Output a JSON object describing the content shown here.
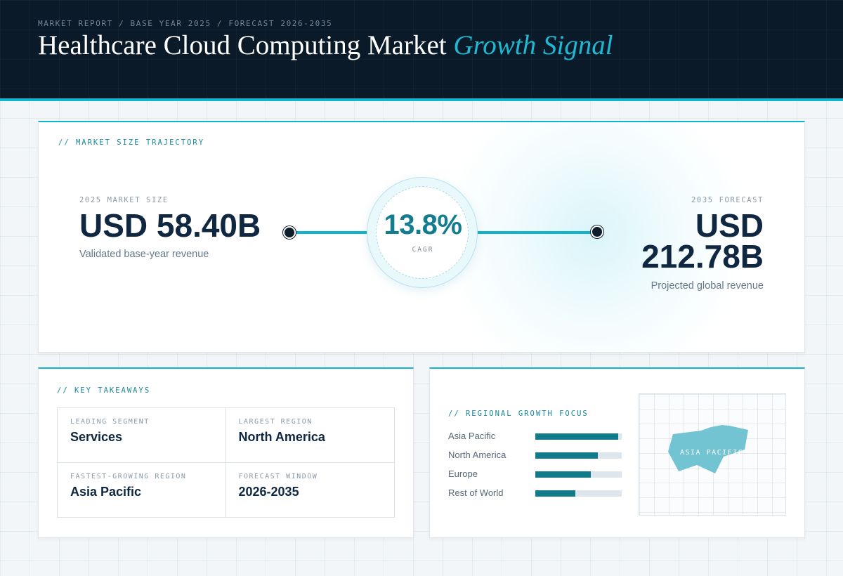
{
  "header": {
    "eyebrow": "MARKET REPORT / BASE YEAR 2025 / FORECAST 2026-2035",
    "title_main": "Healthcare Cloud Computing Market ",
    "title_accent": "Growth Signal"
  },
  "trajectory": {
    "section_label": "// MARKET SIZE TRAJECTORY",
    "base": {
      "label": "2025 MARKET SIZE",
      "value": "USD 58.40B",
      "sub": "Validated base-year revenue"
    },
    "forecast": {
      "label": "2035 FORECAST",
      "value": "USD 212.78B",
      "sub": "Projected global revenue"
    },
    "cagr": {
      "value": "13.8%",
      "label": "CAGR"
    },
    "accent_color": "#12b3cd"
  },
  "takeaways": {
    "section_label": "// KEY TAKEAWAYS",
    "items": [
      {
        "label": "LEADING SEGMENT",
        "value": "Services"
      },
      {
        "label": "LARGEST REGION",
        "value": "North America"
      },
      {
        "label": "FASTEST-GROWING REGION",
        "value": "Asia Pacific"
      },
      {
        "label": "FORECAST WINDOW",
        "value": "2026-2035"
      }
    ]
  },
  "regional": {
    "section_label": "// REGIONAL GROWTH FOCUS",
    "bar_color": "#117a8b",
    "regions": [
      {
        "name": "Asia Pacific",
        "level": 0.96
      },
      {
        "name": "North America",
        "level": 0.72
      },
      {
        "name": "Europe",
        "level": 0.64
      },
      {
        "name": "Rest of World",
        "level": 0.46
      }
    ],
    "map_label": "ASIA PACIFIC"
  }
}
